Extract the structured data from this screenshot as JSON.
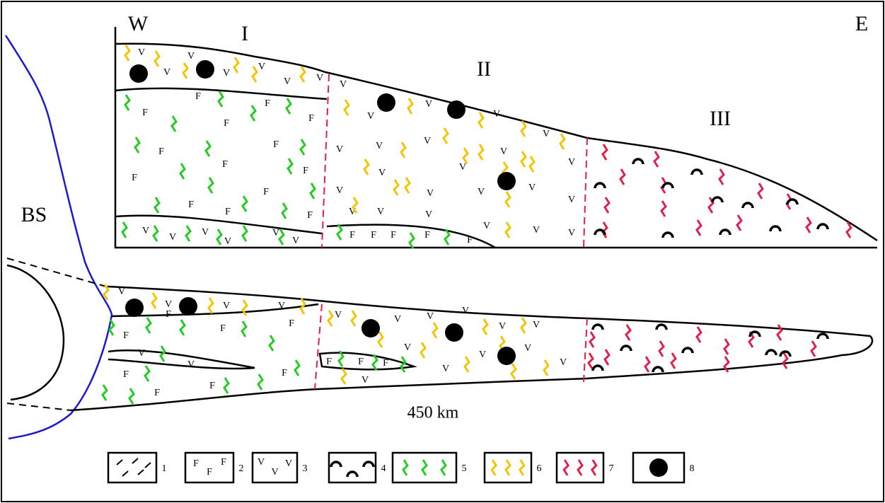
{
  "labels": {
    "west": "W",
    "east": "E",
    "zone1": "I",
    "zone2": "II",
    "zone3": "III",
    "basin": "BS",
    "scale": "450 km"
  },
  "symbols": {
    "feldspar": "F",
    "volcanic": "V"
  },
  "legend": {
    "labels": [
      "1",
      "2",
      "3",
      "4",
      "5",
      "6",
      "7",
      "8"
    ]
  }
}
